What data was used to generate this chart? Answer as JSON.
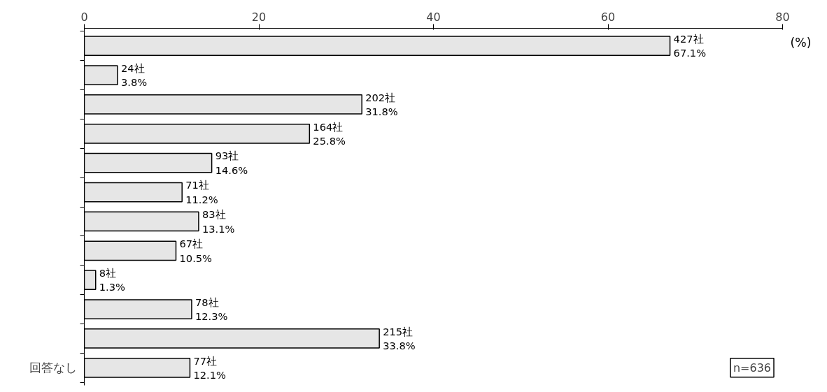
{
  "chart_data": {
    "type": "bar",
    "orientation": "horizontal",
    "xlabel": "(%)",
    "categories": [
      null,
      null,
      null,
      null,
      null,
      null,
      null,
      null,
      null,
      null,
      null,
      "回答なし"
    ],
    "values": [
      67.1,
      3.8,
      31.8,
      25.8,
      14.6,
      11.2,
      13.1,
      10.5,
      1.3,
      12.3,
      33.8,
      12.1
    ],
    "value_labels": [
      "427社\n67.1%",
      "24社\n3.8%",
      "202社\n31.8%",
      "164社\n25.8%",
      "93社\n14.6%",
      "71社\n11.2%",
      "83社\n13.1%",
      "67社\n10.5%",
      "8社\n1.3%",
      "78社\n12.3%",
      "215社\n33.8%",
      "77社\n12.1%"
    ],
    "color": "#e6e6e6",
    "xlim": [
      0,
      80
    ],
    "xticks": [
      0,
      20,
      40,
      60,
      80
    ],
    "grid": false,
    "annotations": [
      "n=636"
    ]
  }
}
